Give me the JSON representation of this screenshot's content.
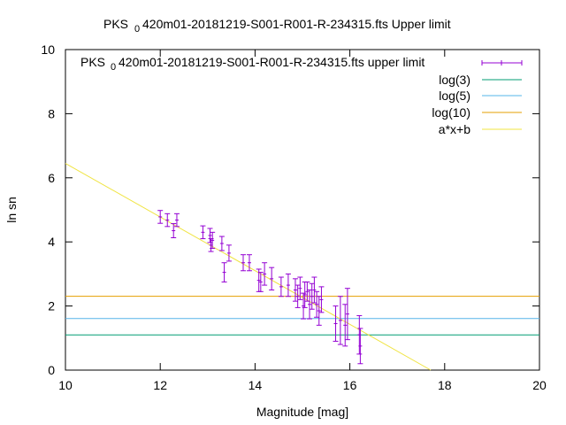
{
  "chart_data": {
    "type": "scatter",
    "title_pre": "PKS",
    "title_sub": "0",
    "title_post": "420m01-20181219-S001-R001-R-234315.fts Upper limit",
    "xlabel": "Magnitude [mag]",
    "ylabel": "ln sn",
    "xlim": [
      10,
      20
    ],
    "ylim": [
      0,
      10
    ],
    "x_ticks": [
      10,
      12,
      14,
      16,
      18,
      20
    ],
    "y_ticks": [
      0,
      2,
      4,
      6,
      8,
      10
    ],
    "grid": false,
    "legend_position": "top-right",
    "series": [
      {
        "name_pre": "PKS",
        "name_sub": "0",
        "name_post": "420m01-20181219-S001-R001-R-234315.fts upper limit",
        "kind": "errorbars",
        "color": "#9400d3",
        "points": [
          {
            "x": 12.0,
            "y": 4.78,
            "err": 0.2
          },
          {
            "x": 12.15,
            "y": 4.68,
            "err": 0.2
          },
          {
            "x": 12.28,
            "y": 4.35,
            "err": 0.22
          },
          {
            "x": 12.35,
            "y": 4.68,
            "err": 0.2
          },
          {
            "x": 12.9,
            "y": 4.3,
            "err": 0.2
          },
          {
            "x": 13.05,
            "y": 4.2,
            "err": 0.22
          },
          {
            "x": 13.07,
            "y": 3.9,
            "err": 0.2
          },
          {
            "x": 13.1,
            "y": 4.05,
            "err": 0.25
          },
          {
            "x": 13.3,
            "y": 3.95,
            "err": 0.22
          },
          {
            "x": 13.35,
            "y": 3.05,
            "err": 0.3
          },
          {
            "x": 13.45,
            "y": 3.65,
            "err": 0.25
          },
          {
            "x": 13.75,
            "y": 3.35,
            "err": 0.25
          },
          {
            "x": 13.88,
            "y": 3.35,
            "err": 0.25
          },
          {
            "x": 14.08,
            "y": 2.8,
            "err": 0.35
          },
          {
            "x": 14.12,
            "y": 2.75,
            "err": 0.3
          },
          {
            "x": 14.2,
            "y": 3.0,
            "err": 0.35
          },
          {
            "x": 14.35,
            "y": 2.85,
            "err": 0.35
          },
          {
            "x": 14.55,
            "y": 2.6,
            "err": 0.3
          },
          {
            "x": 14.7,
            "y": 2.65,
            "err": 0.35
          },
          {
            "x": 14.85,
            "y": 2.5,
            "err": 0.35
          },
          {
            "x": 14.9,
            "y": 2.3,
            "err": 0.35
          },
          {
            "x": 14.95,
            "y": 2.55,
            "err": 0.35
          },
          {
            "x": 15.02,
            "y": 2.0,
            "err": 0.4
          },
          {
            "x": 15.05,
            "y": 2.35,
            "err": 0.4
          },
          {
            "x": 15.1,
            "y": 2.45,
            "err": 0.3
          },
          {
            "x": 15.15,
            "y": 2.05,
            "err": 0.45
          },
          {
            "x": 15.2,
            "y": 2.3,
            "err": 0.4
          },
          {
            "x": 15.25,
            "y": 2.5,
            "err": 0.4
          },
          {
            "x": 15.3,
            "y": 2.05,
            "err": 0.4
          },
          {
            "x": 15.35,
            "y": 1.85,
            "err": 0.45
          },
          {
            "x": 15.4,
            "y": 2.2,
            "err": 0.4
          },
          {
            "x": 15.7,
            "y": 1.45,
            "err": 0.55
          },
          {
            "x": 15.8,
            "y": 1.55,
            "err": 0.75
          },
          {
            "x": 15.9,
            "y": 1.4,
            "err": 0.65
          },
          {
            "x": 15.95,
            "y": 1.75,
            "err": 0.8
          },
          {
            "x": 16.2,
            "y": 1.1,
            "err": 0.6
          },
          {
            "x": 16.22,
            "y": 0.75,
            "err": 0.55
          }
        ]
      },
      {
        "name": "log(3)",
        "kind": "hline",
        "color": "#009e73",
        "y": 1.0986
      },
      {
        "name": "log(5)",
        "kind": "hline",
        "color": "#56b4e9",
        "y": 1.6094
      },
      {
        "name": "log(10)",
        "kind": "hline",
        "color": "#e69f00",
        "y": 2.3026
      },
      {
        "name": "a*x+b",
        "kind": "fit",
        "color": "#f0e442",
        "slope": -0.837,
        "intercept": 14.82
      }
    ]
  }
}
